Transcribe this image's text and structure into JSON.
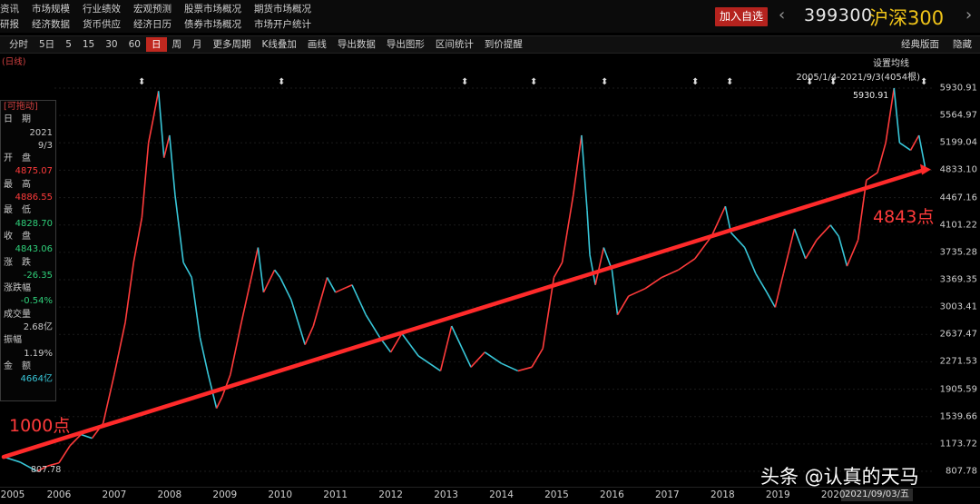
{
  "nav": {
    "row1": [
      "资讯",
      "市场规模",
      "行业绩效",
      "宏观预测",
      "股票市场概况",
      "期货市场概况"
    ],
    "row2": [
      "研报",
      "经济数据",
      "货币供应",
      "经济日历",
      "债券市场概况",
      "市场开户统计"
    ]
  },
  "header": {
    "add_label": "加入自选",
    "code": "399300",
    "name": "沪深300"
  },
  "toolbar": {
    "items": [
      "分时",
      "5日",
      "5",
      "15",
      "30",
      "60",
      "日",
      "周",
      "月",
      "更多周期",
      "K线叠加",
      "画线",
      "导出数据",
      "导出图形",
      "区间统计",
      "到价提醒"
    ],
    "active": "日",
    "right1": "经典版面",
    "right2": "隐藏"
  },
  "period_label": "(日线)",
  "set_ma": "设置均线",
  "range_label": "2005/1/4-2021/9/3(4054根)",
  "info_panel": {
    "header": "[可拖动]",
    "date_label": "日　期",
    "year": "2021",
    "md": "9/3",
    "open_label": "开　盘",
    "open": "4875.07",
    "high_label": "最　高",
    "high": "4886.55",
    "low_label": "最　低",
    "low": "4828.70",
    "close_label": "收　盘",
    "close": "4843.06",
    "change_label": "涨　跌",
    "change": "-26.35",
    "pct_label": "涨跌幅",
    "pct": "-0.54%",
    "vol_label": "成交量",
    "vol": "2.68亿",
    "amp_label": "振幅",
    "amp": "1.19%",
    "amt_label": "金　额",
    "amt": "4664亿"
  },
  "annotations": {
    "start": "1000点",
    "end": "4843点",
    "max_label": "5930.91",
    "min_label": "807.78"
  },
  "cursor_date": "2021/09/03/五",
  "watermark": "头条 @认真的天马",
  "colors": {
    "up": "#ff3b3b",
    "down": "#38c6d8",
    "trend": "#ff2a2a",
    "name": "#f0c419"
  },
  "chart_data": {
    "type": "line",
    "title": "",
    "xlabel": "",
    "ylabel": "",
    "x_ticks": [
      "2005",
      "2006",
      "2007",
      "2008",
      "2009",
      "2010",
      "2011",
      "2012",
      "2013",
      "2014",
      "2015",
      "2016",
      "2017",
      "2018",
      "2019",
      "2020"
    ],
    "y_ticks": [
      "5930.91",
      "5564.97",
      "5199.04",
      "4833.10",
      "4467.16",
      "4101.22",
      "3735.28",
      "3369.35",
      "3003.41",
      "2637.47",
      "2271.53",
      "1905.59",
      "1539.66",
      "1173.72",
      "807.78"
    ],
    "ylim": [
      807.78,
      5930.91
    ],
    "series": [
      {
        "points": [
          [
            2005.0,
            1000
          ],
          [
            2005.3,
            930
          ],
          [
            2005.5,
            850
          ],
          [
            2005.6,
            808
          ],
          [
            2005.8,
            880
          ],
          [
            2006.0,
            920
          ],
          [
            2006.2,
            1150
          ],
          [
            2006.4,
            1300
          ],
          [
            2006.6,
            1250
          ],
          [
            2006.8,
            1450
          ],
          [
            2007.0,
            2100
          ],
          [
            2007.2,
            2800
          ],
          [
            2007.35,
            3600
          ],
          [
            2007.5,
            4200
          ],
          [
            2007.62,
            5200
          ],
          [
            2007.7,
            5500
          ],
          [
            2007.8,
            5891
          ],
          [
            2007.9,
            5000
          ],
          [
            2008.0,
            5300
          ],
          [
            2008.1,
            4500
          ],
          [
            2008.25,
            3600
          ],
          [
            2008.4,
            3400
          ],
          [
            2008.55,
            2600
          ],
          [
            2008.7,
            2100
          ],
          [
            2008.85,
            1650
          ],
          [
            2008.95,
            1800
          ],
          [
            2009.1,
            2100
          ],
          [
            2009.3,
            2800
          ],
          [
            2009.45,
            3300
          ],
          [
            2009.6,
            3800
          ],
          [
            2009.7,
            3200
          ],
          [
            2009.9,
            3500
          ],
          [
            2010.0,
            3400
          ],
          [
            2010.2,
            3100
          ],
          [
            2010.45,
            2500
          ],
          [
            2010.6,
            2750
          ],
          [
            2010.85,
            3400
          ],
          [
            2011.0,
            3200
          ],
          [
            2011.3,
            3300
          ],
          [
            2011.55,
            2900
          ],
          [
            2011.8,
            2600
          ],
          [
            2012.0,
            2400
          ],
          [
            2012.2,
            2650
          ],
          [
            2012.5,
            2350
          ],
          [
            2012.9,
            2150
          ],
          [
            2013.1,
            2750
          ],
          [
            2013.45,
            2200
          ],
          [
            2013.7,
            2400
          ],
          [
            2014.0,
            2250
          ],
          [
            2014.3,
            2150
          ],
          [
            2014.55,
            2200
          ],
          [
            2014.75,
            2450
          ],
          [
            2014.95,
            3400
          ],
          [
            2015.1,
            3600
          ],
          [
            2015.3,
            4500
          ],
          [
            2015.45,
            5300
          ],
          [
            2015.55,
            4300
          ],
          [
            2015.6,
            3700
          ],
          [
            2015.7,
            3300
          ],
          [
            2015.85,
            3800
          ],
          [
            2016.0,
            3500
          ],
          [
            2016.1,
            2900
          ],
          [
            2016.3,
            3150
          ],
          [
            2016.6,
            3250
          ],
          [
            2016.9,
            3400
          ],
          [
            2017.2,
            3500
          ],
          [
            2017.5,
            3650
          ],
          [
            2017.8,
            3950
          ],
          [
            2018.05,
            4350
          ],
          [
            2018.15,
            4000
          ],
          [
            2018.4,
            3800
          ],
          [
            2018.6,
            3450
          ],
          [
            2018.8,
            3200
          ],
          [
            2018.95,
            3000
          ],
          [
            2019.1,
            3450
          ],
          [
            2019.3,
            4050
          ],
          [
            2019.5,
            3650
          ],
          [
            2019.7,
            3900
          ],
          [
            2019.95,
            4100
          ],
          [
            2020.1,
            3950
          ],
          [
            2020.25,
            3550
          ],
          [
            2020.45,
            3900
          ],
          [
            2020.6,
            4700
          ],
          [
            2020.8,
            4800
          ],
          [
            2020.95,
            5200
          ],
          [
            2021.1,
            5930.91
          ],
          [
            2021.2,
            5200
          ],
          [
            2021.4,
            5100
          ],
          [
            2021.55,
            5300
          ],
          [
            2021.67,
            4843.06
          ]
        ]
      },
      {
        "points": [
          [
            2005.0,
            1000
          ],
          [
            2021.67,
            4843
          ]
        ]
      }
    ]
  }
}
